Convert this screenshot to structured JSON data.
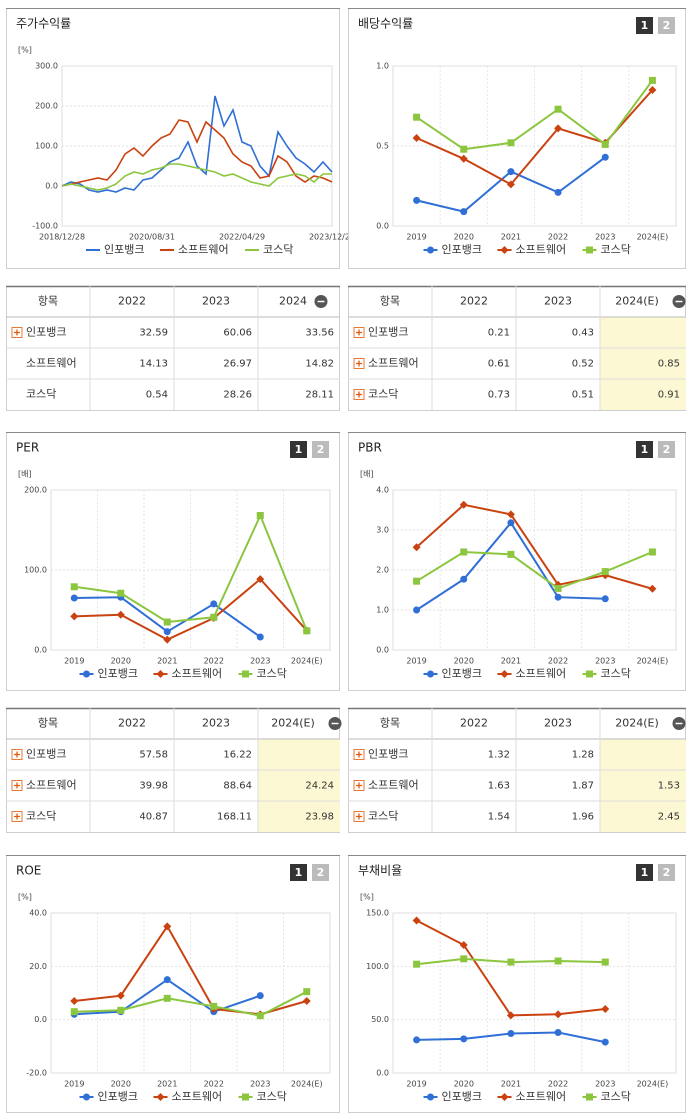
{
  "page_buttons": [
    "1",
    "2"
  ],
  "chart_data": [
    {
      "type": "line",
      "title": "주가수익률",
      "y_unit": "[%]",
      "categories": [
        "2018/12/28",
        null,
        null,
        null,
        null,
        null,
        null,
        null,
        null,
        null,
        "2020/08/31",
        null,
        null,
        null,
        null,
        null,
        null,
        null,
        null,
        null,
        "2022/04/29",
        null,
        null,
        null,
        null,
        null,
        null,
        null,
        null,
        null,
        "2023/12/28"
      ],
      "series": [
        {
          "name": "인포뱅크",
          "color": "#2f6fd6",
          "values": [
            0,
            10,
            5,
            -10,
            -15,
            -10,
            -15,
            -5,
            -10,
            15,
            20,
            40,
            60,
            70,
            110,
            50,
            30,
            225,
            150,
            190,
            110,
            100,
            50,
            25,
            135,
            100,
            70,
            55,
            35,
            60,
            35
          ]
        },
        {
          "name": "소프트웨어",
          "color": "#c9420f",
          "values": [
            0,
            5,
            10,
            15,
            20,
            15,
            40,
            80,
            95,
            75,
            100,
            120,
            130,
            165,
            160,
            110,
            160,
            140,
            120,
            80,
            60,
            50,
            20,
            25,
            75,
            60,
            25,
            10,
            25,
            20,
            10
          ]
        },
        {
          "name": "코스닥",
          "color": "#8cc63f",
          "values": [
            0,
            5,
            0,
            -5,
            -10,
            -5,
            5,
            25,
            35,
            30,
            40,
            45,
            55,
            55,
            50,
            45,
            40,
            35,
            25,
            30,
            20,
            10,
            5,
            0,
            20,
            25,
            30,
            25,
            10,
            30,
            30
          ]
        }
      ],
      "ylim": [
        -100,
        300
      ],
      "yticks": [
        {
          "value": -100,
          "label": "-100.0"
        },
        {
          "value": 0,
          "label": "0.0"
        },
        {
          "value": 100,
          "label": "100.0"
        },
        {
          "value": 200,
          "label": "200.0"
        },
        {
          "value": 300,
          "label": "300.0"
        }
      ],
      "grid": true
    },
    {
      "type": "line",
      "title": "배당수익률",
      "categories": [
        "2019",
        "2020",
        "2021",
        "2022",
        "2023",
        "2024(E)"
      ],
      "series": [
        {
          "name": "인포뱅크",
          "color": "#2f6fd6",
          "marker": "circle",
          "values": [
            0.16,
            0.09,
            0.34,
            0.21,
            0.43,
            null
          ]
        },
        {
          "name": "소프트웨어",
          "color": "#c9420f",
          "marker": "diamond",
          "values": [
            0.55,
            0.42,
            0.26,
            0.61,
            0.52,
            0.85
          ]
        },
        {
          "name": "코스닥",
          "color": "#8cc63f",
          "marker": "square",
          "values": [
            0.68,
            0.48,
            0.52,
            0.73,
            0.51,
            0.91
          ]
        }
      ],
      "ylim": [
        0,
        1
      ],
      "yticks": [
        {
          "value": 0,
          "label": "0.0"
        },
        0.5,
        {
          "value": 1,
          "label": "1.0"
        }
      ],
      "grid": true
    },
    {
      "type": "line",
      "title": "PER",
      "y_unit": "[배]",
      "categories": [
        "2019",
        "2020",
        "2021",
        "2022",
        "2023",
        "2024(E)"
      ],
      "series": [
        {
          "name": "인포뱅크",
          "color": "#2f6fd6",
          "marker": "circle",
          "values": [
            65,
            66,
            23,
            57.58,
            16.22,
            null
          ]
        },
        {
          "name": "소프트웨어",
          "color": "#c9420f",
          "marker": "diamond",
          "values": [
            42,
            44,
            13,
            39.98,
            88.64,
            24.24
          ]
        },
        {
          "name": "코스닥",
          "color": "#8cc63f",
          "marker": "square",
          "values": [
            79,
            71,
            35,
            40.87,
            168.11,
            23.98
          ]
        }
      ],
      "ylim": [
        0,
        200
      ],
      "yticks": [
        {
          "value": 0,
          "label": "0.0"
        },
        {
          "value": 100,
          "label": "100.0"
        },
        {
          "value": 200,
          "label": "200.0"
        }
      ],
      "grid": true
    },
    {
      "type": "line",
      "title": "PBR",
      "y_unit": "[배]",
      "categories": [
        "2019",
        "2020",
        "2021",
        "2022",
        "2023",
        "2024(E)"
      ],
      "series": [
        {
          "name": "인포뱅크",
          "color": "#2f6fd6",
          "marker": "circle",
          "values": [
            1.0,
            1.77,
            3.18,
            1.32,
            1.28,
            null
          ]
        },
        {
          "name": "소프트웨어",
          "color": "#c9420f",
          "marker": "diamond",
          "values": [
            2.57,
            3.63,
            3.39,
            1.63,
            1.87,
            1.53
          ]
        },
        {
          "name": "코스닥",
          "color": "#8cc63f",
          "marker": "square",
          "values": [
            1.72,
            2.45,
            2.39,
            1.54,
            1.96,
            2.45
          ]
        }
      ],
      "ylim": [
        0,
        4
      ],
      "yticks": [
        {
          "value": 0,
          "label": "0.0"
        },
        {
          "value": 1,
          "label": "1.0"
        },
        {
          "value": 2,
          "label": "2.0"
        },
        {
          "value": 3,
          "label": "3.0"
        },
        {
          "value": 4,
          "label": "4.0"
        }
      ],
      "grid": true
    },
    {
      "type": "line",
      "title": "ROE",
      "y_unit": "[%]",
      "categories": [
        "2019",
        "2020",
        "2021",
        "2022",
        "2023",
        "2024(E)"
      ],
      "series": [
        {
          "name": "인포뱅크",
          "color": "#2f6fd6",
          "marker": "circle",
          "values": [
            2,
            3,
            15,
            3,
            9,
            null
          ]
        },
        {
          "name": "소프트웨어",
          "color": "#c9420f",
          "marker": "diamond",
          "values": [
            7,
            9,
            35,
            4,
            2,
            7
          ]
        },
        {
          "name": "코스닥",
          "color": "#8cc63f",
          "marker": "square",
          "values": [
            3,
            3.5,
            8,
            5,
            1.5,
            10.5
          ]
        }
      ],
      "ylim": [
        -20,
        40
      ],
      "yticks": [
        {
          "value": -20,
          "label": "-20.0"
        },
        {
          "value": 0,
          "label": "0.0"
        },
        {
          "value": 20,
          "label": "20.0"
        },
        {
          "value": 40,
          "label": "40.0"
        }
      ],
      "grid": true
    },
    {
      "type": "line",
      "title": "부채비율",
      "y_unit": "[%]",
      "categories": [
        "2019",
        "2020",
        "2021",
        "2022",
        "2023",
        "2024(E)"
      ],
      "series": [
        {
          "name": "인포뱅크",
          "color": "#2f6fd6",
          "marker": "circle",
          "values": [
            31,
            32,
            37,
            38,
            29,
            null
          ]
        },
        {
          "name": "소프트웨어",
          "color": "#c9420f",
          "marker": "diamond",
          "values": [
            143,
            120,
            54,
            55,
            60,
            null
          ]
        },
        {
          "name": "코스닥",
          "color": "#8cc63f",
          "marker": "square",
          "values": [
            102,
            107,
            104,
            105,
            104,
            null
          ]
        }
      ],
      "ylim": [
        0,
        150
      ],
      "yticks": [
        {
          "value": 0,
          "label": "0.0"
        },
        {
          "value": 50,
          "label": "50.0"
        },
        {
          "value": 100,
          "label": "100.0"
        },
        {
          "value": 150,
          "label": "150.0"
        }
      ],
      "grid": true
    }
  ],
  "tables": [
    {
      "header": [
        "항목",
        "2022",
        "2023",
        "2024"
      ],
      "rows": [
        [
          "인포뱅크",
          32.59,
          60.06,
          33.56
        ],
        [
          "소프트웨어",
          14.13,
          26.97,
          14.82
        ],
        [
          "코스닥",
          0.54,
          28.26,
          28.11
        ]
      ]
    },
    {
      "header": [
        "항목",
        "2022",
        "2023",
        "2024(E)"
      ],
      "rows": [
        [
          "인포뱅크",
          0.21,
          0.43,
          null
        ],
        [
          "소프트웨어",
          0.61,
          0.52,
          0.85
        ],
        [
          "코스닥",
          0.73,
          0.51,
          0.91
        ]
      ]
    },
    {
      "header": [
        "항목",
        "2022",
        "2023",
        "2024(E)"
      ],
      "rows": [
        [
          "인포뱅크",
          57.58,
          16.22,
          null
        ],
        [
          "소프트웨어",
          39.98,
          88.64,
          24.24
        ],
        [
          "코스닥",
          40.87,
          168.11,
          23.98
        ]
      ]
    },
    {
      "header": [
        "항목",
        "2022",
        "2023",
        "2024(E)"
      ],
      "rows": [
        [
          "인포뱅크",
          1.32,
          1.28,
          null
        ],
        [
          "소프트웨어",
          1.63,
          1.87,
          1.53
        ],
        [
          "코스닥",
          1.54,
          1.96,
          2.45
        ]
      ]
    }
  ]
}
